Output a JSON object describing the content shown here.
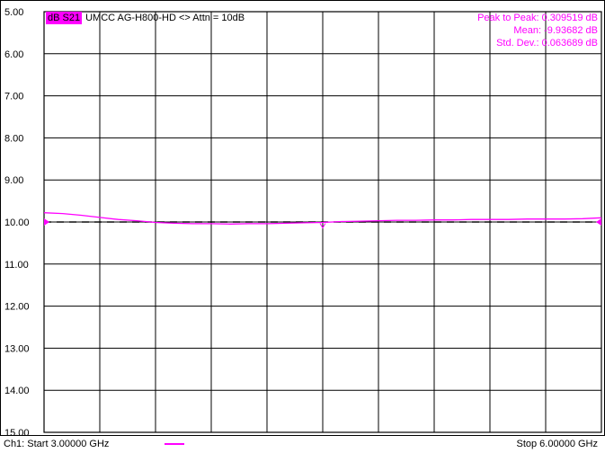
{
  "chart_data": {
    "type": "line",
    "trace_label": "dB S21",
    "title": "UMCC  AG-H800-HD <> Attn = 10dB",
    "ylim": [
      -15.0,
      -5.0
    ],
    "yticks": [
      "5.00",
      "6.00",
      "7.00",
      "8.00",
      "9.00",
      "10.00",
      "11.00",
      "12.00",
      "13.00",
      "14.00",
      "15.00"
    ],
    "xlim": [
      3.0,
      6.0
    ],
    "x_unit": "GHz",
    "grid": true,
    "reference_level": -10.0,
    "stats": {
      "peak_to_peak": "Peak to Peak: 0.309519 dB",
      "mean": "Mean: -9.93682 dB",
      "std_dev": "Std. Dev.: 0.063689 dB"
    },
    "series": [
      {
        "color": "#ff00ff",
        "x": [
          3.0,
          3.1,
          3.2,
          3.3,
          3.4,
          3.5,
          3.6,
          3.7,
          3.8,
          3.9,
          4.0,
          4.1,
          4.2,
          4.3,
          4.4,
          4.5,
          4.6,
          4.7,
          4.8,
          4.9,
          5.0,
          5.1,
          5.2,
          5.3,
          5.4,
          5.5,
          5.6,
          5.7,
          5.8,
          5.9,
          6.0
        ],
        "values": [
          -9.78,
          -9.8,
          -9.84,
          -9.89,
          -9.94,
          -9.97,
          -10.01,
          -10.03,
          -10.04,
          -10.04,
          -10.05,
          -10.04,
          -10.04,
          -10.03,
          -10.02,
          -10.01,
          -9.99,
          -9.98,
          -9.97,
          -9.96,
          -9.96,
          -9.95,
          -9.95,
          -9.94,
          -9.94,
          -9.94,
          -9.93,
          -9.93,
          -9.93,
          -9.92,
          -9.9
        ]
      }
    ],
    "footer": {
      "start": "Ch1: Start  3.00000 GHz",
      "stop": "Stop  6.00000 GHz"
    }
  }
}
